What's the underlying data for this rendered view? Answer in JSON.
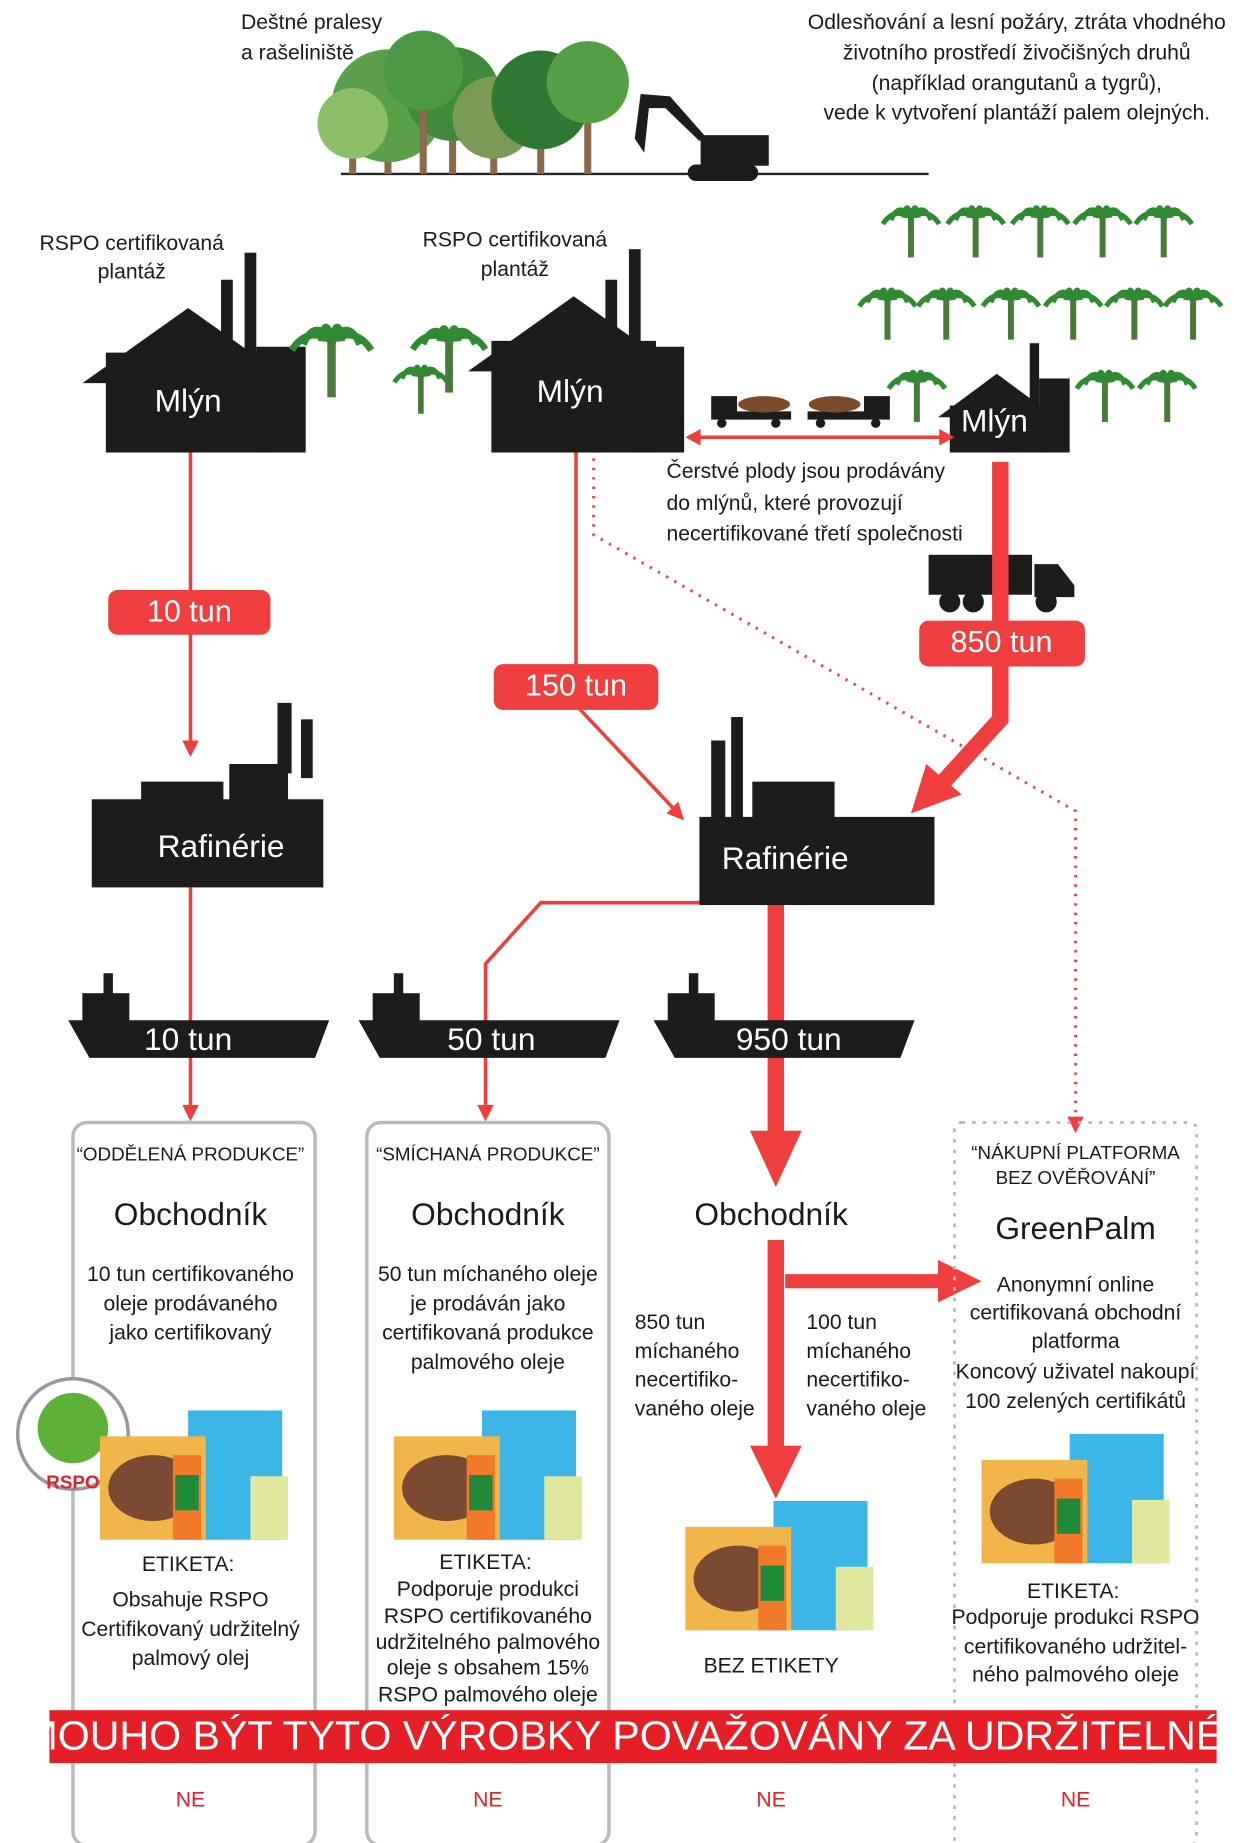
{
  "top": {
    "rainforest": [
      "Deštné pralesy",
      "a rašeliniště"
    ],
    "deforestation": [
      "Odlesňování a lesní požáry, ztráta vhodného",
      "životního prostředí živočišných druhů",
      "(například orangutanů a tygrů),",
      "vede k vytvoření plantáží palem olejných."
    ]
  },
  "mills": [
    {
      "caption": [
        "RSPO certifikovaná",
        "plantáž"
      ],
      "name": "Mlýn"
    },
    {
      "caption": [
        "RSPO certifikovaná",
        "plantáž"
      ],
      "name": "Mlýn"
    },
    {
      "name": "Mlýn"
    }
  ],
  "fruit_note": [
    "Čerstvé plody jsou prodávány",
    "do mlýnů, které provozují",
    "necertifikované třetí společnosti"
  ],
  "flows": [
    "10 tun",
    "150 tun",
    "850 tun"
  ],
  "refineries": [
    "Rafinérie",
    "Rafinérie"
  ],
  "ships": [
    "10 tun",
    "50 tun",
    "950 tun"
  ],
  "columns": [
    {
      "tag": [
        "“ODDĚLENÁ PRODUKCE”"
      ],
      "title": "Obchodník",
      "description": [
        "10 tun certifikovaného",
        "oleje prodávaného",
        "jako certifikovaný"
      ],
      "label_heading": "ETIKETA:",
      "label": [
        "Obsahuje RSPO",
        "Certifikovaný udržitelný",
        "palmový olej"
      ],
      "answer": "NE"
    },
    {
      "tag": [
        "“SMÍCHANÁ PRODUKCE”"
      ],
      "title": "Obchodník",
      "description": [
        "50 tun míchaného oleje",
        "je prodáván jako",
        "certifikovaná produkce",
        "palmového oleje"
      ],
      "label_heading": "ETIKETA:",
      "label": [
        "Podporuje produkci",
        "RSPO certifikovaného",
        "udržitelného palmového",
        "oleje s obsahem 15%",
        "RSPO palmového oleje"
      ],
      "answer": "NE"
    },
    {
      "title": "Obchodník",
      "notes": [
        [
          "850 tun",
          "míchaného",
          "necertifiko-",
          "vaného oleje"
        ],
        [
          "100 tun",
          "míchaného",
          "necertifiko-",
          "vaného oleje"
        ]
      ],
      "label": [
        "BEZ ETIKETY"
      ],
      "answer": "NE"
    },
    {
      "tag": [
        "“NÁKUPNÍ PLATFORMA",
        "BEZ OVĚŘOVÁNÍ”"
      ],
      "title": "GreenPalm",
      "description": [
        "Anonymní online",
        "certifikovaná obchodní",
        "platforma",
        "Koncový uživatel nakoupí",
        "100 zelených certifikátů"
      ],
      "label_heading": "ETIKETA:",
      "label": [
        "Podporuje produkci RSPO",
        "certifikovaného udržitel-",
        "ného palmového oleje"
      ],
      "answer": "NE"
    }
  ],
  "logo": "RSPO",
  "question": "MOUHO BÝT TYTO VÝROBKY POVAŽOVÁNY ZA UDRŽITELNÉ?"
}
